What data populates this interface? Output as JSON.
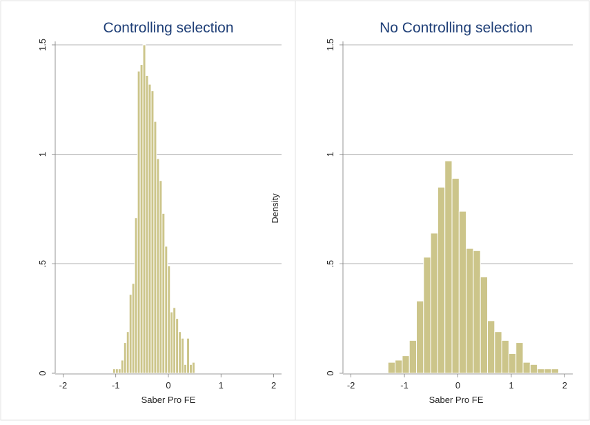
{
  "chart_data": [
    {
      "type": "bar",
      "title": "Controlling selection",
      "xlabel": "Saber Pro FE",
      "ylabel": "",
      "xlim": [
        -2.15,
        2.15
      ],
      "ylim": [
        0,
        1.55
      ],
      "xticks": [
        -2,
        -1,
        0,
        1,
        2
      ],
      "xtick_labels": [
        "-2",
        "-1",
        "0",
        "1",
        "2"
      ],
      "yticks": [
        0,
        0.5,
        1,
        1.5
      ],
      "ytick_labels": [
        "0",
        ".5",
        "1",
        "1.5"
      ],
      "grid": true,
      "bar_color": "#ccc58a",
      "bin_width": 0.052,
      "bins": [
        {
          "x": -1.03,
          "density": 0.02
        },
        {
          "x": -0.978,
          "density": 0.02
        },
        {
          "x": -0.926,
          "density": 0.02
        },
        {
          "x": -0.874,
          "density": 0.06
        },
        {
          "x": -0.822,
          "density": 0.14
        },
        {
          "x": -0.77,
          "density": 0.19
        },
        {
          "x": -0.718,
          "density": 0.36
        },
        {
          "x": -0.666,
          "density": 0.41
        },
        {
          "x": -0.614,
          "density": 0.71
        },
        {
          "x": -0.562,
          "density": 1.38
        },
        {
          "x": -0.51,
          "density": 1.41
        },
        {
          "x": -0.458,
          "density": 1.5
        },
        {
          "x": -0.406,
          "density": 1.36
        },
        {
          "x": -0.354,
          "density": 1.32
        },
        {
          "x": -0.302,
          "density": 1.29
        },
        {
          "x": -0.25,
          "density": 1.15
        },
        {
          "x": -0.198,
          "density": 0.98
        },
        {
          "x": -0.146,
          "density": 0.88
        },
        {
          "x": -0.094,
          "density": 0.73
        },
        {
          "x": -0.042,
          "density": 0.58
        },
        {
          "x": 0.01,
          "density": 0.49
        },
        {
          "x": 0.062,
          "density": 0.28
        },
        {
          "x": 0.114,
          "density": 0.3
        },
        {
          "x": 0.166,
          "density": 0.25
        },
        {
          "x": 0.218,
          "density": 0.19
        },
        {
          "x": 0.27,
          "density": 0.16
        },
        {
          "x": 0.322,
          "density": 0.04
        },
        {
          "x": 0.374,
          "density": 0.16
        },
        {
          "x": 0.426,
          "density": 0.04
        },
        {
          "x": 0.478,
          "density": 0.05
        }
      ]
    },
    {
      "type": "bar",
      "title": "No Controlling selection",
      "xlabel": "Saber Pro FE",
      "ylabel": "Density",
      "xlim": [
        -2.15,
        2.15
      ],
      "ylim": [
        0,
        1.55
      ],
      "xticks": [
        -2,
        -1,
        0,
        1,
        2
      ],
      "xtick_labels": [
        "-2",
        "-1",
        "0",
        "1",
        "2"
      ],
      "yticks": [
        0,
        0.5,
        1,
        1.5
      ],
      "ytick_labels": [
        "0",
        ".5",
        "1",
        "1.5"
      ],
      "grid": true,
      "bar_color": "#ccc58a",
      "bin_width": 0.133,
      "bins": [
        {
          "x": -1.24,
          "density": 0.05
        },
        {
          "x": -1.107,
          "density": 0.06
        },
        {
          "x": -0.974,
          "density": 0.08
        },
        {
          "x": -0.841,
          "density": 0.15
        },
        {
          "x": -0.708,
          "density": 0.33
        },
        {
          "x": -0.575,
          "density": 0.53
        },
        {
          "x": -0.442,
          "density": 0.64
        },
        {
          "x": -0.309,
          "density": 0.85
        },
        {
          "x": -0.176,
          "density": 0.97
        },
        {
          "x": -0.043,
          "density": 0.89
        },
        {
          "x": 0.09,
          "density": 0.74
        },
        {
          "x": 0.223,
          "density": 0.57
        },
        {
          "x": 0.356,
          "density": 0.56
        },
        {
          "x": 0.489,
          "density": 0.44
        },
        {
          "x": 0.622,
          "density": 0.24
        },
        {
          "x": 0.755,
          "density": 0.19
        },
        {
          "x": 0.888,
          "density": 0.15
        },
        {
          "x": 1.021,
          "density": 0.09
        },
        {
          "x": 1.154,
          "density": 0.14
        },
        {
          "x": 1.287,
          "density": 0.05
        },
        {
          "x": 1.42,
          "density": 0.04
        },
        {
          "x": 1.553,
          "density": 0.02
        },
        {
          "x": 1.686,
          "density": 0.02
        },
        {
          "x": 1.819,
          "density": 0.02
        }
      ]
    }
  ]
}
